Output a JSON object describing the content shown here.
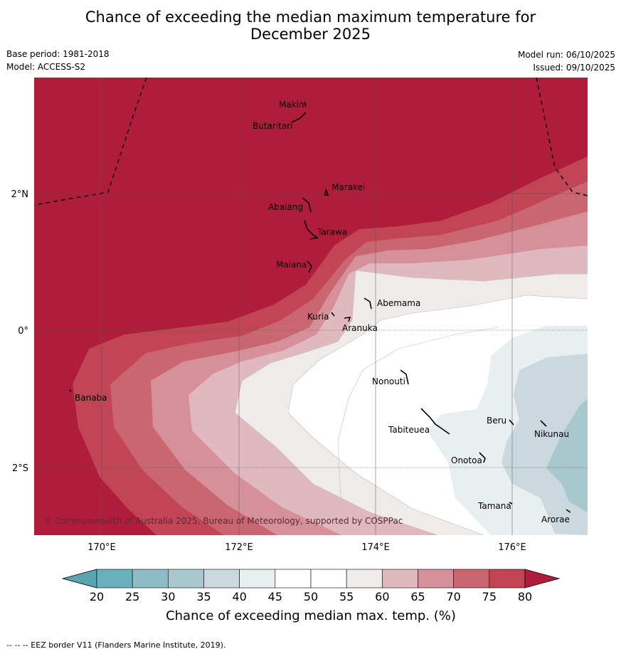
{
  "title": {
    "line1": "Chance of exceeding the median maximum temperature for",
    "line2": "December 2025"
  },
  "meta": {
    "base_period": "Base period: 1981-2018",
    "model": "Model: ACCESS-S2",
    "model_run": "Model run: 06/10/2025",
    "issued": "Issued: 09/10/2025"
  },
  "map": {
    "lat_labels": [
      "2°N",
      "0°",
      "2°S"
    ],
    "lon_labels": [
      "170°E",
      "172°E",
      "174°E",
      "176°E"
    ],
    "places": [
      {
        "name": "Makin"
      },
      {
        "name": "Butaritari"
      },
      {
        "name": "Marakei"
      },
      {
        "name": "Abaiang"
      },
      {
        "name": "Tarawa"
      },
      {
        "name": "Maiana"
      },
      {
        "name": "Abemama"
      },
      {
        "name": "Kuria"
      },
      {
        "name": "Aranuka"
      },
      {
        "name": "Banaba"
      },
      {
        "name": "Nonouti"
      },
      {
        "name": "Beru"
      },
      {
        "name": "Tabiteuea"
      },
      {
        "name": "Nikunau"
      },
      {
        "name": "Onotoa"
      },
      {
        "name": "Tamana"
      },
      {
        "name": "Arorae"
      }
    ],
    "copyright": "© Commonwealth of Australia 2025, Bureau of Meteorology, supported by COSPPac"
  },
  "colorbar": {
    "ticks": [
      "20",
      "25",
      "30",
      "35",
      "40",
      "45",
      "50",
      "55",
      "60",
      "65",
      "70",
      "75",
      "80"
    ],
    "colors": [
      "#6aafbc",
      "#8dbcc7",
      "#a8c8ce",
      "#c9d9de",
      "#e9eef1",
      "#ffffff",
      "#ffffff",
      "#efebeb",
      "#e0b9c0",
      "#d6909a",
      "#c9666f",
      "#c14555"
    ],
    "under_color": "#5aa3b0",
    "over_color": "#b01d3b",
    "label": "Chance of exceeding median max. temp. (%)"
  },
  "footer": "--  --  -- EEZ border V11 (Flanders Marine Institute, 2019)."
}
